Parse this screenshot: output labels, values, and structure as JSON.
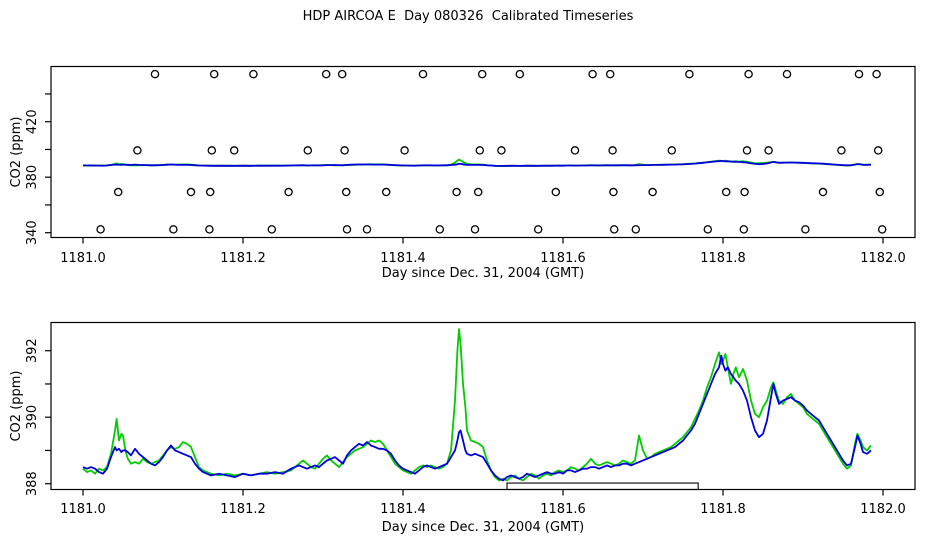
{
  "title": "HDP AIRCOA E  Day 080326  Calibrated Timeseries",
  "colors": {
    "green_series": "#00CC00",
    "blue_series": "#0000DD",
    "axis": "#000000",
    "background": "#FFFFFF"
  },
  "chart_data": [
    {
      "type": "line",
      "panel": "top",
      "title": "",
      "xlabel": "Day since Dec. 31, 2004 (GMT)",
      "ylabel": "CO2 (ppm)",
      "xlim": [
        1180.96,
        1182.04
      ],
      "ylim": [
        336.5,
        459.8
      ],
      "grid": false,
      "legend": "none",
      "xticks": [
        1181.0,
        1181.2,
        1181.4,
        1181.6,
        1181.8,
        1182.0
      ],
      "xtick_labels": [
        "1181.0",
        "1181.2",
        "1181.4",
        "1181.6",
        "1181.8",
        "1182.0"
      ],
      "yticks_labeled": [
        340,
        380,
        420
      ],
      "ytick_labels": [
        "340",
        "380",
        "420"
      ],
      "yticks_minor": [
        360,
        400,
        440
      ],
      "series_ref": "timeseries",
      "calibration_circles": [
        {
          "name": "cal-gas-level-1",
          "ppm": 454.3,
          "days": [
            1181.09,
            1181.164,
            1181.213,
            1181.304,
            1181.324,
            1181.425,
            1181.499,
            1181.546,
            1181.637,
            1181.659,
            1181.758,
            1181.832,
            1181.88,
            1181.97,
            1181.992
          ]
        },
        {
          "name": "cal-gas-level-2",
          "ppm": 399.3,
          "days": [
            1181.068,
            1181.161,
            1181.189,
            1181.281,
            1181.327,
            1181.402,
            1181.496,
            1181.523,
            1181.615,
            1181.662,
            1181.736,
            1181.83,
            1181.857,
            1181.948,
            1181.994
          ]
        },
        {
          "name": "cal-gas-level-3",
          "ppm": 369.3,
          "days": [
            1181.044,
            1181.135,
            1181.159,
            1181.257,
            1181.329,
            1181.379,
            1181.467,
            1181.494,
            1181.591,
            1181.663,
            1181.712,
            1181.804,
            1181.827,
            1181.925,
            1181.996
          ]
        },
        {
          "name": "cal-gas-level-4",
          "ppm": 342.4,
          "days": [
            1181.022,
            1181.113,
            1181.158,
            1181.236,
            1181.33,
            1181.355,
            1181.446,
            1181.49,
            1181.569,
            1181.664,
            1181.691,
            1181.781,
            1181.826,
            1181.903,
            1181.999
          ]
        }
      ]
    },
    {
      "type": "line",
      "panel": "bottom",
      "title": "",
      "xlabel": "Day since Dec. 31, 2004 (GMT)",
      "ylabel": "CO2 (ppm)",
      "xlim": [
        1180.96,
        1182.04
      ],
      "ylim": [
        387.83,
        392.85
      ],
      "grid": false,
      "legend": "none",
      "xticks": [
        1181.0,
        1181.2,
        1181.4,
        1181.6,
        1181.8,
        1182.0
      ],
      "xtick_labels": [
        "1181.0",
        "1181.2",
        "1181.4",
        "1181.6",
        "1181.8",
        "1182.0"
      ],
      "yticks_labeled": [
        388,
        390,
        392
      ],
      "ytick_labels": [
        "388",
        "390",
        "392"
      ],
      "yticks_minor": [
        389,
        391
      ],
      "series_ref": "timeseries",
      "flag_box": {
        "day_start": 1181.53,
        "day_end": 1181.769,
        "top_ppm": 388.02
      }
    }
  ],
  "timeseries": {
    "x": [
      1181.0,
      1181.005,
      1181.01,
      1181.015,
      1181.02,
      1181.025,
      1181.03,
      1181.035,
      1181.04,
      1181.042,
      1181.045,
      1181.048,
      1181.05,
      1181.053,
      1181.056,
      1181.06,
      1181.065,
      1181.07,
      1181.075,
      1181.08,
      1181.085,
      1181.09,
      1181.095,
      1181.1,
      1181.105,
      1181.11,
      1181.115,
      1181.12,
      1181.125,
      1181.13,
      1181.135,
      1181.14,
      1181.145,
      1181.15,
      1181.155,
      1181.16,
      1181.17,
      1181.18,
      1181.19,
      1181.2,
      1181.21,
      1181.22,
      1181.23,
      1181.24,
      1181.25,
      1181.26,
      1181.265,
      1181.27,
      1181.275,
      1181.28,
      1181.285,
      1181.29,
      1181.295,
      1181.3,
      1181.305,
      1181.31,
      1181.315,
      1181.32,
      1181.325,
      1181.33,
      1181.335,
      1181.34,
      1181.345,
      1181.35,
      1181.355,
      1181.36,
      1181.365,
      1181.37,
      1181.375,
      1181.38,
      1181.385,
      1181.39,
      1181.395,
      1181.4,
      1181.405,
      1181.41,
      1181.415,
      1181.42,
      1181.425,
      1181.43,
      1181.435,
      1181.44,
      1181.445,
      1181.45,
      1181.455,
      1181.46,
      1181.465,
      1181.468,
      1181.47,
      1181.472,
      1181.475,
      1181.478,
      1181.48,
      1181.485,
      1181.49,
      1181.495,
      1181.5,
      1181.505,
      1181.51,
      1181.515,
      1181.52,
      1181.525,
      1181.53,
      1181.535,
      1181.54,
      1181.545,
      1181.55,
      1181.555,
      1181.56,
      1181.565,
      1181.57,
      1181.575,
      1181.58,
      1181.585,
      1181.59,
      1181.595,
      1181.6,
      1181.605,
      1181.61,
      1181.615,
      1181.62,
      1181.625,
      1181.63,
      1181.635,
      1181.64,
      1181.645,
      1181.65,
      1181.655,
      1181.66,
      1181.665,
      1181.67,
      1181.675,
      1181.68,
      1181.685,
      1181.69,
      1181.695,
      1181.7,
      1181.705,
      1181.71,
      1181.715,
      1181.72,
      1181.725,
      1181.73,
      1181.735,
      1181.74,
      1181.745,
      1181.75,
      1181.755,
      1181.76,
      1181.765,
      1181.77,
      1181.775,
      1181.78,
      1181.785,
      1181.79,
      1181.795,
      1181.798,
      1181.8,
      1181.803,
      1181.806,
      1181.81,
      1181.813,
      1181.816,
      1181.82,
      1181.825,
      1181.83,
      1181.835,
      1181.84,
      1181.845,
      1181.85,
      1181.855,
      1181.86,
      1181.863,
      1181.866,
      1181.87,
      1181.875,
      1181.88,
      1181.885,
      1181.89,
      1181.895,
      1181.9,
      1181.905,
      1181.91,
      1181.915,
      1181.92,
      1181.925,
      1181.93,
      1181.935,
      1181.94,
      1181.945,
      1181.95,
      1181.955,
      1181.96,
      1181.965,
      1181.968,
      1181.972,
      1181.975,
      1181.98,
      1181.985
    ],
    "series": [
      {
        "name": "co2-calibrated-green",
        "color_key": "green_series",
        "values": [
          388.45,
          388.35,
          388.4,
          388.3,
          388.45,
          388.4,
          388.5,
          388.9,
          389.6,
          389.95,
          389.3,
          389.5,
          389.45,
          389.0,
          388.75,
          388.6,
          388.65,
          388.6,
          388.75,
          388.65,
          388.6,
          388.65,
          388.7,
          388.85,
          389.0,
          389.1,
          389.05,
          389.1,
          389.25,
          389.2,
          389.1,
          388.8,
          388.5,
          388.4,
          388.35,
          388.3,
          388.25,
          388.3,
          388.25,
          388.3,
          388.25,
          388.3,
          388.35,
          388.3,
          388.35,
          388.4,
          388.5,
          388.6,
          388.7,
          388.6,
          388.5,
          388.45,
          388.6,
          388.75,
          388.85,
          388.7,
          388.6,
          388.5,
          388.65,
          388.8,
          388.9,
          389.0,
          389.05,
          389.1,
          389.2,
          389.3,
          389.25,
          389.3,
          389.2,
          389.0,
          388.8,
          388.6,
          388.5,
          388.4,
          388.35,
          388.3,
          388.4,
          388.5,
          388.55,
          388.5,
          388.55,
          388.5,
          388.45,
          388.5,
          388.6,
          389.0,
          390.5,
          392.0,
          392.65,
          392.2,
          391.0,
          390.3,
          389.6,
          389.3,
          389.25,
          389.2,
          389.1,
          388.7,
          388.4,
          388.2,
          388.1,
          388.15,
          388.1,
          388.2,
          388.25,
          388.15,
          388.1,
          388.2,
          388.3,
          388.25,
          388.15,
          388.25,
          388.3,
          388.25,
          388.35,
          388.4,
          388.35,
          388.4,
          388.5,
          388.45,
          388.4,
          388.5,
          388.6,
          388.75,
          388.6,
          388.55,
          388.6,
          388.65,
          388.6,
          388.55,
          388.6,
          388.7,
          388.65,
          388.6,
          388.7,
          389.45,
          389.0,
          388.75,
          388.8,
          388.9,
          388.95,
          389.0,
          389.05,
          389.1,
          389.2,
          389.3,
          389.4,
          389.55,
          389.7,
          389.95,
          390.2,
          390.5,
          390.9,
          391.2,
          391.6,
          391.95,
          391.6,
          391.7,
          391.9,
          391.5,
          391.0,
          391.3,
          391.5,
          391.2,
          391.45,
          391.1,
          390.5,
          390.1,
          390.0,
          390.3,
          390.5,
          390.9,
          391.05,
          390.8,
          390.5,
          390.4,
          390.6,
          390.7,
          390.5,
          390.4,
          390.3,
          390.1,
          390.0,
          389.9,
          389.8,
          389.6,
          389.4,
          389.2,
          389.0,
          388.8,
          388.6,
          388.45,
          388.55,
          389.2,
          389.5,
          389.3,
          389.1,
          389.0,
          389.15
        ]
      },
      {
        "name": "co2-calibrated-blue",
        "color_key": "blue_series",
        "values": [
          388.5,
          388.45,
          388.5,
          388.45,
          388.35,
          388.3,
          388.45,
          388.8,
          389.1,
          389.0,
          389.05,
          388.95,
          389.0,
          389.0,
          388.95,
          388.85,
          389.05,
          388.9,
          388.8,
          388.7,
          388.6,
          388.55,
          388.65,
          388.8,
          389.0,
          389.15,
          389.0,
          388.95,
          388.9,
          388.85,
          388.8,
          388.6,
          388.45,
          388.35,
          388.3,
          388.25,
          388.3,
          388.25,
          388.2,
          388.3,
          388.25,
          388.3,
          388.3,
          388.35,
          388.3,
          388.45,
          388.5,
          388.55,
          388.5,
          388.45,
          388.5,
          388.55,
          388.5,
          388.6,
          388.7,
          388.75,
          388.8,
          388.7,
          388.6,
          388.85,
          389.0,
          389.1,
          389.2,
          389.15,
          389.25,
          389.15,
          389.1,
          389.05,
          389.05,
          389.0,
          388.9,
          388.7,
          388.55,
          388.45,
          388.4,
          388.35,
          388.3,
          388.4,
          388.5,
          388.55,
          388.5,
          388.45,
          388.5,
          388.55,
          388.6,
          388.8,
          389.0,
          389.3,
          389.55,
          389.6,
          389.3,
          389.0,
          388.9,
          388.85,
          388.9,
          388.85,
          388.8,
          388.6,
          388.4,
          388.25,
          388.15,
          388.1,
          388.2,
          388.25,
          388.2,
          388.15,
          388.2,
          388.3,
          388.25,
          388.2,
          388.25,
          388.3,
          388.35,
          388.3,
          388.3,
          388.35,
          388.3,
          388.4,
          388.4,
          388.35,
          388.4,
          388.45,
          388.45,
          388.5,
          388.5,
          388.45,
          388.5,
          388.55,
          388.5,
          388.55,
          388.55,
          388.6,
          388.6,
          388.55,
          388.6,
          388.65,
          388.7,
          388.75,
          388.8,
          388.85,
          388.9,
          388.95,
          389.0,
          389.05,
          389.1,
          389.2,
          389.3,
          389.45,
          389.6,
          389.8,
          390.1,
          390.4,
          390.7,
          391.0,
          391.3,
          391.5,
          391.85,
          391.6,
          391.4,
          391.5,
          391.3,
          391.2,
          391.1,
          391.0,
          390.8,
          390.5,
          390.0,
          389.6,
          389.4,
          389.5,
          389.9,
          390.6,
          391.0,
          390.7,
          390.4,
          390.5,
          390.55,
          390.6,
          390.5,
          390.45,
          390.35,
          390.2,
          390.1,
          390.0,
          389.9,
          389.7,
          389.5,
          389.3,
          389.1,
          388.9,
          388.7,
          388.55,
          388.6,
          389.1,
          389.45,
          389.2,
          388.95,
          388.9,
          389.0
        ]
      }
    ]
  }
}
